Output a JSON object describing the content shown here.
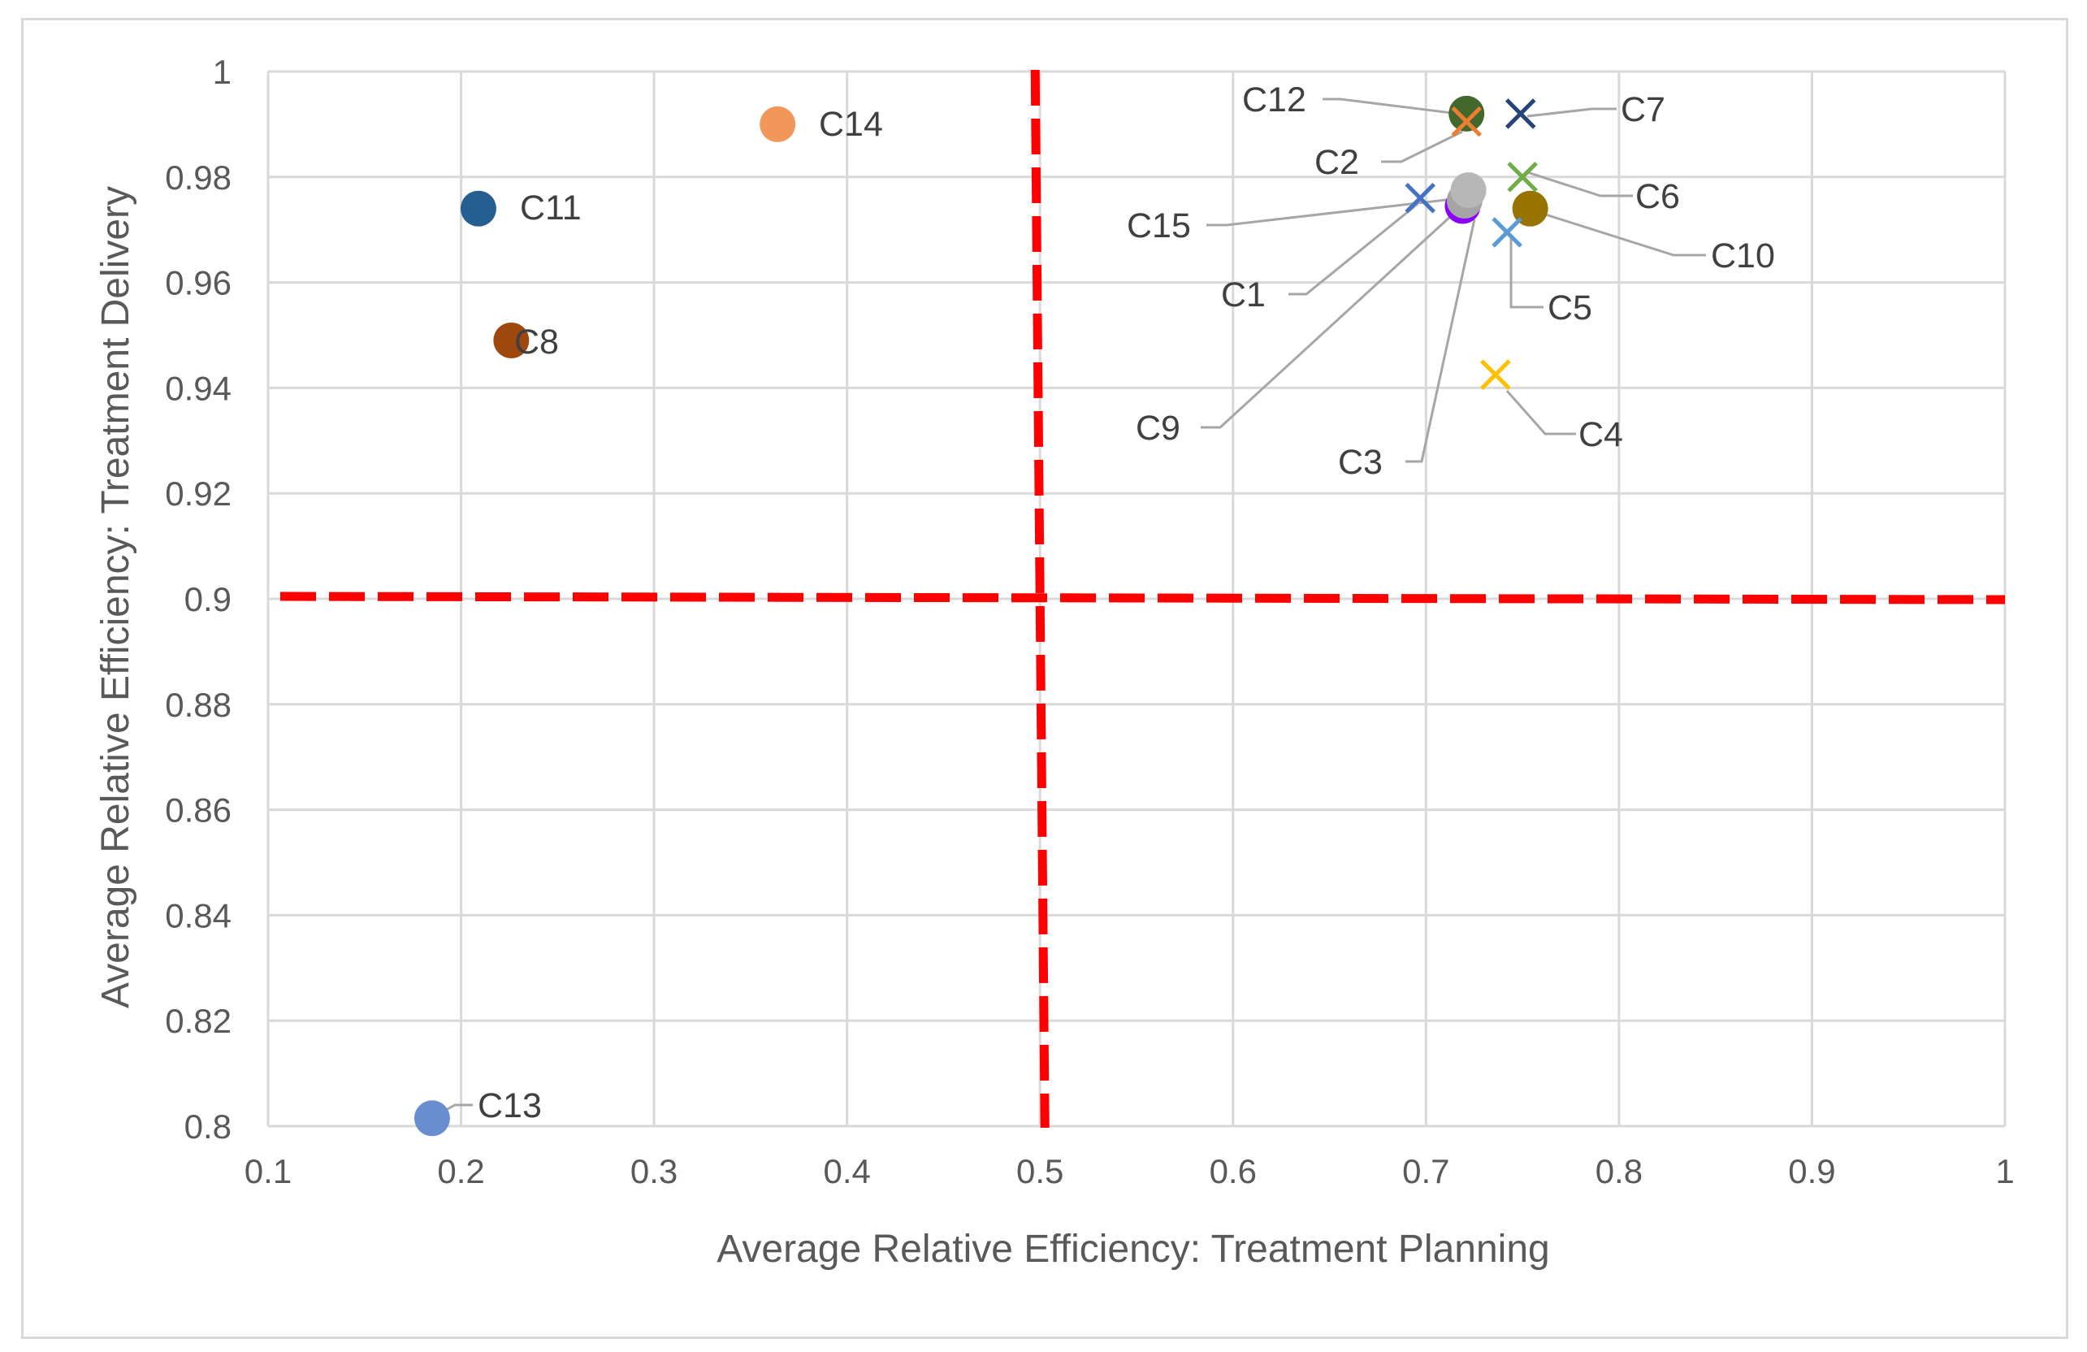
{
  "chart_data": {
    "type": "scatter",
    "title": "",
    "xlabel": "Average Relative Efficiency: Treatment Planning",
    "ylabel": "Average Relative Efficiency: Treatment Delivery",
    "xlim": [
      0.1,
      1
    ],
    "ylim": [
      0.8,
      1
    ],
    "x_ticks": [
      0.1,
      0.2,
      0.3,
      0.4,
      0.5,
      0.6,
      0.7,
      0.8,
      0.9,
      1
    ],
    "x_tick_labels": [
      "0.1",
      "0.2",
      "0.3",
      "0.4",
      "0.5",
      "0.6",
      "0.7",
      "0.8",
      "0.9",
      "1"
    ],
    "y_ticks": [
      0.8,
      0.82,
      0.84,
      0.86,
      0.88,
      0.9,
      0.92,
      0.94,
      0.96,
      0.98,
      1
    ],
    "y_tick_labels": [
      "0.8",
      "0.82",
      "0.84",
      "0.86",
      "0.88",
      "0.9",
      "0.92",
      "0.94",
      "0.96",
      "0.98",
      "1"
    ],
    "grid": true,
    "reference_lines": [
      {
        "orientation": "vertical",
        "value": 0.5,
        "color": "#ff0000",
        "style": "dashed"
      },
      {
        "orientation": "horizontal",
        "value": 0.9,
        "color": "#ff0000",
        "style": "dashed"
      }
    ],
    "series": [
      {
        "name": "C1",
        "x": 0.697,
        "y": 0.976,
        "marker": "x",
        "color": "#4472c4"
      },
      {
        "name": "C2",
        "x": 0.721,
        "y": 0.9905,
        "marker": "x",
        "color": "#ed7d31"
      },
      {
        "name": "C3",
        "x": 0.719,
        "y": 0.9745,
        "marker": "circle",
        "color": "#8b00ff"
      },
      {
        "name": "C4",
        "x": 0.736,
        "y": 0.9425,
        "marker": "x",
        "color": "#ffc000"
      },
      {
        "name": "C5",
        "x": 0.742,
        "y": 0.9695,
        "marker": "x",
        "color": "#5b9bd5"
      },
      {
        "name": "C6",
        "x": 0.75,
        "y": 0.98,
        "marker": "x",
        "color": "#70ad47"
      },
      {
        "name": "C7",
        "x": 0.749,
        "y": 0.992,
        "marker": "x",
        "color": "#264478"
      },
      {
        "name": "C8",
        "x": 0.226,
        "y": 0.949,
        "marker": "circle",
        "color": "#9e480e"
      },
      {
        "name": "C9",
        "x": 0.72,
        "y": 0.9755,
        "marker": "circle",
        "color": "#a5a5a5"
      },
      {
        "name": "C10",
        "x": 0.754,
        "y": 0.974,
        "marker": "circle",
        "color": "#997300"
      },
      {
        "name": "C11",
        "x": 0.209,
        "y": 0.974,
        "marker": "circle",
        "color": "#255e91"
      },
      {
        "name": "C12",
        "x": 0.721,
        "y": 0.992,
        "marker": "circle",
        "color": "#43682b"
      },
      {
        "name": "C13",
        "x": 0.185,
        "y": 0.8015,
        "marker": "circle",
        "color": "#698ed0"
      },
      {
        "name": "C14",
        "x": 0.364,
        "y": 0.99,
        "marker": "circle",
        "color": "#f1975a"
      },
      {
        "name": "C15",
        "x": 0.722,
        "y": 0.9775,
        "marker": "circle",
        "color": "#b7b7b7"
      }
    ]
  }
}
